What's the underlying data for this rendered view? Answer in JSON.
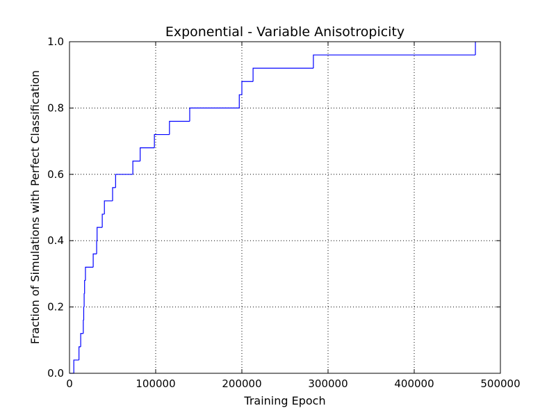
{
  "chart_data": {
    "type": "step",
    "title": "Exponential - Variable Anisotropicity",
    "x_label": "Training Epoch",
    "y_label": "Fraction of Simulations with Perfect Classification",
    "x": [
      0,
      5000,
      11000,
      13000,
      16000,
      16500,
      17000,
      17500,
      18500,
      27500,
      31500,
      32000,
      38000,
      40500,
      50000,
      53500,
      73500,
      82000,
      98500,
      116000,
      139500,
      197000,
      200000,
      213000,
      283000,
      471000
    ],
    "values": [
      0,
      0.04,
      0.08,
      0.12,
      0.16,
      0.2,
      0.24,
      0.28,
      0.32,
      0.36,
      0.4,
      0.44,
      0.48,
      0.52,
      0.56,
      0.6,
      0.64,
      0.68,
      0.72,
      0.76,
      0.8,
      0.84,
      0.88,
      0.92,
      0.96,
      1.0
    ],
    "color": "#0000ff",
    "xlim": [
      0,
      500000
    ],
    "xticks": [
      0,
      100000,
      200000,
      300000,
      400000,
      500000
    ],
    "ylim": [
      0,
      1
    ],
    "yticks": [
      {
        "value": 0,
        "label": "0.0"
      },
      0.2,
      0.4,
      0.6,
      0.8,
      {
        "value": 1,
        "label": "1.0"
      }
    ],
    "grid": true
  }
}
